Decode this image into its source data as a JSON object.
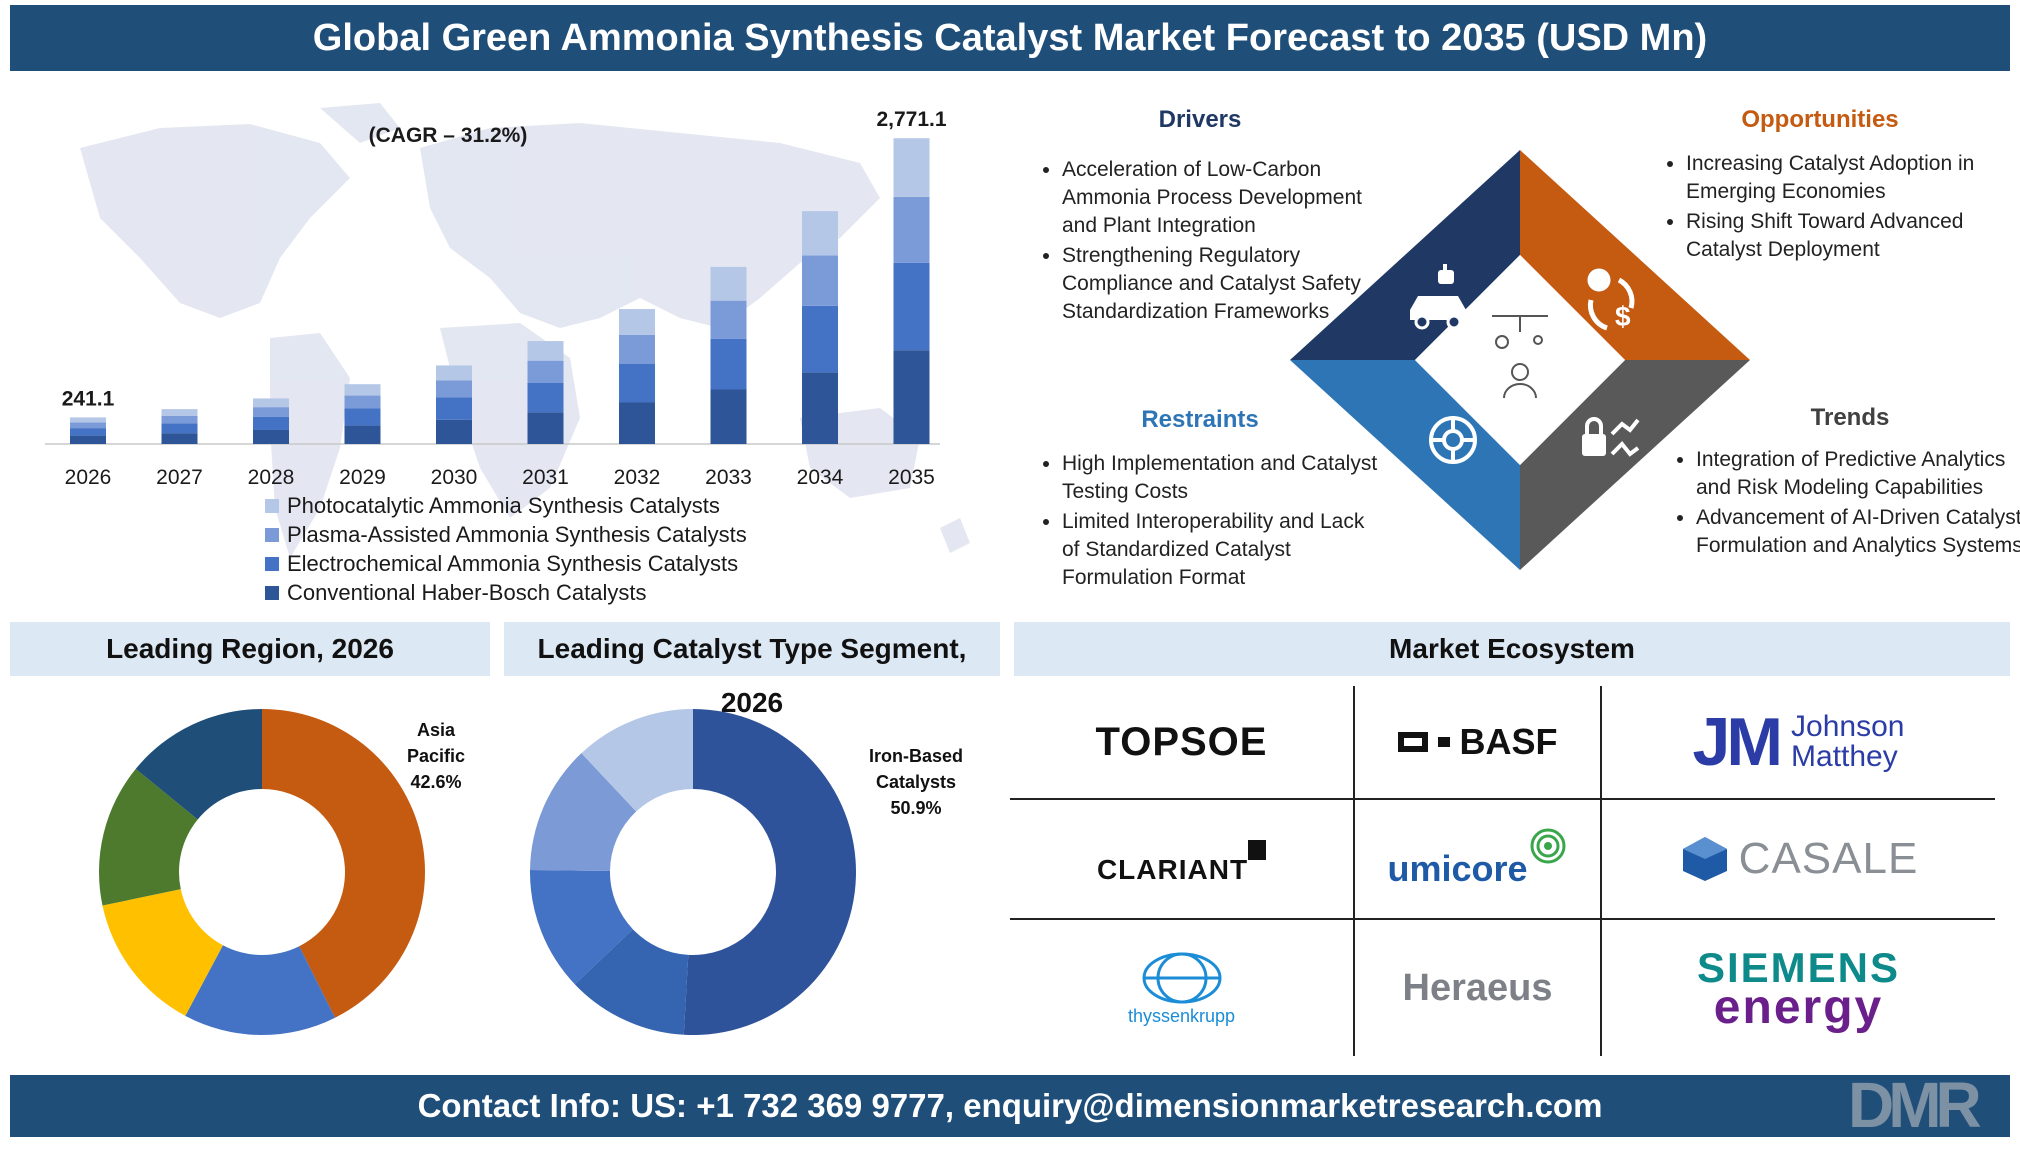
{
  "header": {
    "title": "Global Green Ammonia Synthesis Catalyst Market Forecast to 2035 (USD Mn)"
  },
  "chart_data": [
    {
      "type": "bar",
      "stacked": true,
      "categories": [
        "2026",
        "2027",
        "2028",
        "2029",
        "2030",
        "2031",
        "2032",
        "2033",
        "2034",
        "2035"
      ],
      "series": [
        {
          "name": "Conventional Haber-Bosch Catalysts",
          "color": "#2e5597",
          "values": [
            76,
            98,
            127,
            167,
            219,
            287,
            376,
            494,
            650,
            850
          ]
        },
        {
          "name": "Electrochemical Ammonia Synthesis Catalysts",
          "color": "#4472c4",
          "values": [
            68,
            90,
            118,
            155,
            203,
            266,
            349,
            458,
            602,
            791
          ]
        },
        {
          "name": "Plasma-Assisted Ammonia Synthesis Catalysts",
          "color": "#7a9bd8",
          "values": [
            52,
            68,
            89,
            117,
            154,
            202,
            265,
            347,
            456,
            598
          ]
        },
        {
          "name": "Photocatalytic Ammonia Synthesis Catalysts",
          "color": "#b4c7e7",
          "values": [
            45.1,
            60,
            79,
            103,
            136,
            178,
            233,
            306,
            402,
            532.1
          ]
        }
      ],
      "totals_labels": {
        "first": "241.1",
        "last": "2,771.1"
      },
      "annotation": "(CAGR – 31.2%)",
      "ylim": [
        0,
        2900
      ],
      "grid": false,
      "legend_position": "bottom"
    },
    {
      "type": "pie",
      "donut": true,
      "title": "Leading Region, 2026",
      "slices": [
        {
          "label": "Asia Pacific",
          "value": 42.6,
          "color": "#c55a11"
        },
        {
          "label": "",
          "value": 15.2,
          "color": "#4472c4"
        },
        {
          "label": "",
          "value": 13.9,
          "color": "#ffc000"
        },
        {
          "label": "",
          "value": 14.2,
          "color": "#4e7a2e"
        },
        {
          "label": "",
          "value": 14.1,
          "color": "#1f4e79"
        }
      ],
      "highlight": {
        "lines": [
          "Asia",
          "Pacific",
          "42.6%"
        ]
      }
    },
    {
      "type": "pie",
      "donut": true,
      "title": "Leading Catalyst Type Segment, 2026",
      "slices": [
        {
          "label": "Iron-Based Catalysts",
          "value": 50.9,
          "color": "#2f539b"
        },
        {
          "label": "",
          "value": 12.0,
          "color": "#3564b0"
        },
        {
          "label": "",
          "value": 12.3,
          "color": "#4472c4"
        },
        {
          "label": "",
          "value": 12.8,
          "color": "#7c9bd6"
        },
        {
          "label": "",
          "value": 12.0,
          "color": "#b4c7e7"
        }
      ],
      "highlight": {
        "lines": [
          "Iron-Based",
          "Catalysts",
          "50.9%"
        ]
      }
    }
  ],
  "drivers": {
    "title": "Drivers",
    "color": "#1f3864",
    "items": [
      "Acceleration of Low-Carbon Ammonia Process Development and Plant Integration",
      "Strengthening Regulatory Compliance and Catalyst Safety Standardization Frameworks"
    ]
  },
  "opportunities": {
    "title": "Opportunities",
    "color": "#c55a11",
    "items": [
      "Increasing Catalyst Adoption in Emerging Economies",
      "Rising Shift Toward Advanced Catalyst Deployment"
    ]
  },
  "restraints": {
    "title": "Restraints",
    "color": "#2e75b6",
    "items": [
      "High Implementation and Catalyst Testing Costs",
      "Limited Interoperability and Lack of Standardized Catalyst Formulation Format"
    ]
  },
  "trends": {
    "title": "Trends",
    "color": "#404040",
    "items": [
      "Integration of Predictive Analytics and Risk Modeling Capabilities",
      "Advancement of AI-Driven Catalyst Formulation and Analytics Systems"
    ]
  },
  "diamond": {
    "colors": {
      "drivers": "#1f3864",
      "opportunities": "#c55a11",
      "restraints": "#2e75b6",
      "trends": "#595959"
    },
    "icons": [
      "car-robot-icon",
      "dollar-cycle-icon",
      "gear-network-icon",
      "lock-analytics-icon",
      "lab-person-icon"
    ]
  },
  "sections": {
    "region": "Leading Region, 2026",
    "catalyst": "Leading Catalyst Type Segment, 2026",
    "ecosystem": "Market Ecosystem"
  },
  "ecosystem": {
    "logos": {
      "topsoe": "TOPSOE",
      "basf": "BASF",
      "jm_mark": "JM",
      "jm_line1": "Johnson",
      "jm_line2": "Matthey",
      "clariant": "CLARIANT",
      "umicore": "umicore",
      "casale": "CASALE",
      "thyssenkrupp": "thyssenkrupp",
      "heraeus": "Heraeus",
      "siemens_line1": "SIEMENS",
      "siemens_line2": "energy"
    }
  },
  "footer": {
    "contact": "Contact Info: US: +1 732 369 9777, enquiry@dimensionmarketresearch.com",
    "logo_text": "DMR"
  }
}
